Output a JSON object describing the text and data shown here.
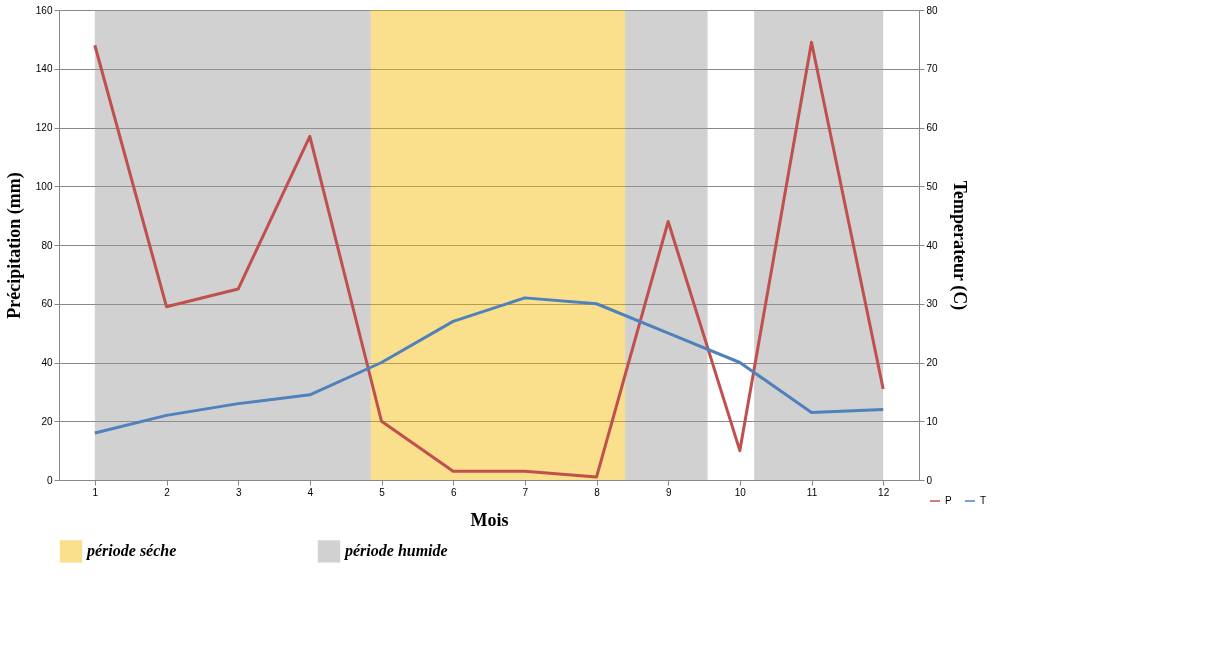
{
  "chart_data": {
    "type": "line",
    "x": [
      1,
      2,
      3,
      4,
      5,
      6,
      7,
      8,
      9,
      10,
      11,
      12
    ],
    "series": [
      {
        "name": "P",
        "color": "#c0504d",
        "values": [
          148,
          59,
          65,
          117,
          20,
          3,
          3,
          1,
          88,
          10,
          149,
          31
        ]
      },
      {
        "name": "T",
        "color": "#4f81bd",
        "axis": "y2",
        "values": [
          8,
          11,
          13,
          14.5,
          20,
          27,
          31,
          30,
          25,
          20,
          11.5,
          12
        ]
      }
    ],
    "xlabel": "Mois",
    "ylabel": "Précipitation (mm)",
    "y2label": "Temperateur (C)",
    "xlim": [
      0.5,
      12.5
    ],
    "xticks": [
      1,
      2,
      3,
      4,
      5,
      6,
      7,
      8,
      9,
      10,
      11,
      12
    ],
    "ylim": [
      0,
      160
    ],
    "yticks": [
      0,
      20,
      40,
      60,
      80,
      100,
      120,
      140,
      160
    ],
    "y2lim": [
      0,
      80
    ],
    "y2ticks": [
      0,
      10,
      20,
      30,
      40,
      50,
      60,
      70,
      80
    ],
    "bands": [
      {
        "axis": "x",
        "from": 4.85,
        "to": 8.4,
        "label": "période séche",
        "color": "#f5b800"
      },
      {
        "axis": "x",
        "from": 1,
        "to": 4.85,
        "label": "période humide",
        "color": "#9a9a9a"
      },
      {
        "axis": "x",
        "from": 8.4,
        "to": 9.55,
        "color": "#9a9a9a"
      },
      {
        "axis": "x",
        "from": 10.2,
        "to": 12,
        "color": "#9a9a9a"
      }
    ],
    "grid": "y",
    "legend": "bottom right",
    "line_style": "solid",
    "marker": "none"
  }
}
